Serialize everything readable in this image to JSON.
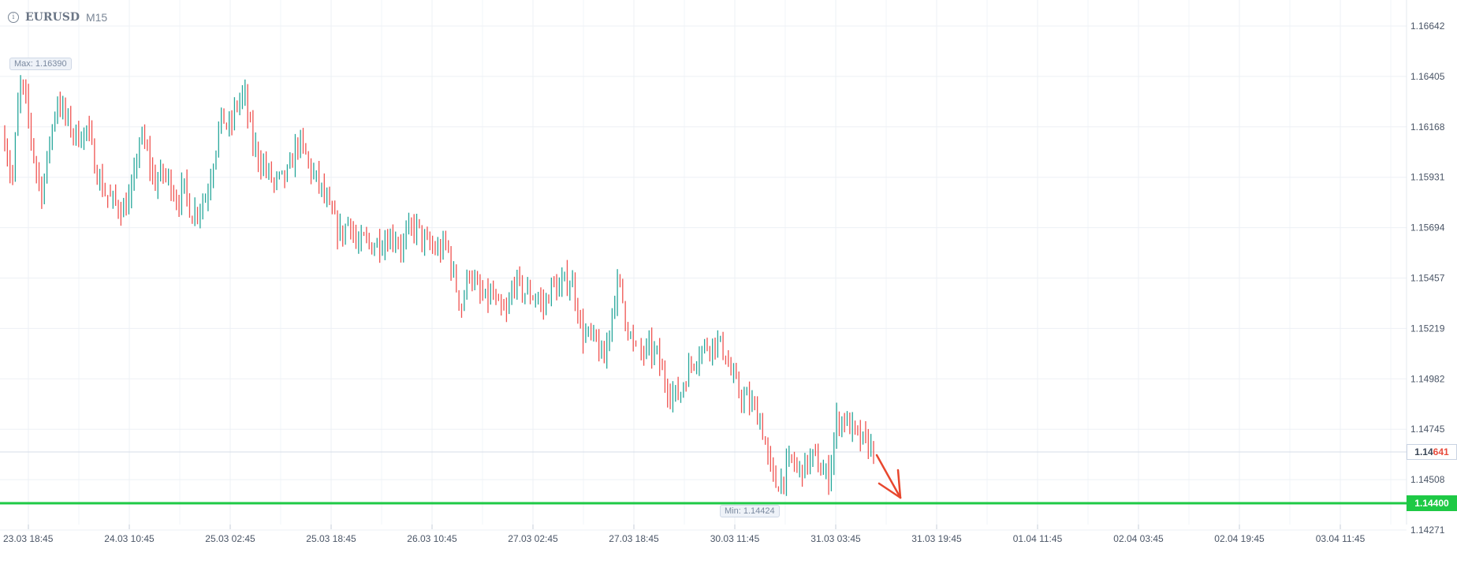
{
  "header": {
    "info_icon": "i",
    "symbol": "EURUSD",
    "timeframe": "M15"
  },
  "chart_data": {
    "type": "candlestick",
    "symbol": "EURUSD",
    "timeframe": "M15",
    "y_ticks": [
      "1.16642",
      "1.16405",
      "1.16168",
      "1.15931",
      "1.15694",
      "1.15457",
      "1.15219",
      "1.14982",
      "1.14745",
      "1.14508",
      "1.14271"
    ],
    "ylim": [
      1.1408,
      1.1686
    ],
    "x_ticks": [
      "23.03 18:45",
      "24.03 10:45",
      "25.03 02:45",
      "25.03 18:45",
      "26.03 10:45",
      "27.03 02:45",
      "27.03 18:45",
      "30.03 11:45",
      "31.03 03:45",
      "31.03 19:45",
      "01.04 11:45",
      "02.04 03:45",
      "02.04 19:45",
      "03.04 11:45"
    ],
    "max_label": "Max: 1.16390",
    "min_label": "Min: 1.14424",
    "max_value": 1.1639,
    "min_value": 1.14424,
    "current_price": 1.14641,
    "current_price_prefix": "1.14",
    "current_price_suffix": "641",
    "support_level": 1.144,
    "support_level_label": "1.14400",
    "forecast_arrow": "down",
    "up_color": "#26a69a",
    "down_color": "#ef5350",
    "level_color": "#1ec945",
    "arrow_color": "#e8472e",
    "grid": true,
    "price_path": [
      [
        0,
        1.1612
      ],
      [
        1,
        1.159
      ],
      [
        2,
        1.1638
      ],
      [
        3,
        1.1625
      ],
      [
        4,
        1.16
      ],
      [
        5,
        1.1585
      ],
      [
        6,
        1.161
      ],
      [
        7,
        1.163
      ],
      [
        8,
        1.1622
      ],
      [
        9,
        1.1615
      ],
      [
        10,
        1.1612
      ],
      [
        11,
        1.1616
      ],
      [
        12,
        1.16
      ],
      [
        13,
        1.1588
      ],
      [
        14,
        1.1583
      ],
      [
        15,
        1.158
      ],
      [
        16,
        1.1578
      ],
      [
        17,
        1.1586
      ],
      [
        18,
        1.1612
      ],
      [
        19,
        1.1605
      ],
      [
        20,
        1.159
      ],
      [
        21,
        1.1595
      ],
      [
        22,
        1.1592
      ],
      [
        23,
        1.1582
      ],
      [
        24,
        1.1588
      ],
      [
        25,
        1.1575
      ],
      [
        26,
        1.158
      ],
      [
        27,
        1.1585
      ],
      [
        28,
        1.1605
      ],
      [
        29,
        1.1622
      ],
      [
        30,
        1.1615
      ],
      [
        31,
        1.1628
      ],
      [
        32,
        1.1632
      ],
      [
        33,
        1.161
      ],
      [
        34,
        1.1602
      ],
      [
        35,
        1.1596
      ],
      [
        36,
        1.159
      ],
      [
        37,
        1.1592
      ],
      [
        38,
        1.1595
      ],
      [
        39,
        1.161
      ],
      [
        40,
        1.1605
      ],
      [
        41,
        1.1595
      ],
      [
        42,
        1.159
      ],
      [
        43,
        1.158
      ],
      [
        44,
        1.1572
      ],
      [
        45,
        1.1565
      ],
      [
        46,
        1.1575
      ],
      [
        47,
        1.156
      ],
      [
        48,
        1.1563
      ],
      [
        49,
        1.1561
      ],
      [
        50,
        1.1563
      ],
      [
        51,
        1.1564
      ],
      [
        52,
        1.1566
      ],
      [
        53,
        1.156
      ],
      [
        54,
        1.1568
      ],
      [
        55,
        1.157
      ],
      [
        56,
        1.1562
      ],
      [
        57,
        1.156
      ],
      [
        58,
        1.1558
      ],
      [
        59,
        1.1562
      ],
      [
        60,
        1.1545
      ],
      [
        61,
        1.1532
      ],
      [
        62,
        1.155
      ],
      [
        63,
        1.154
      ],
      [
        64,
        1.1535
      ],
      [
        65,
        1.1538
      ],
      [
        66,
        1.153
      ],
      [
        67,
        1.1528
      ],
      [
        68,
        1.1545
      ],
      [
        69,
        1.154
      ],
      [
        70,
        1.1538
      ],
      [
        71,
        1.1537
      ],
      [
        72,
        1.1532
      ],
      [
        73,
        1.1542
      ],
      [
        74,
        1.154
      ],
      [
        75,
        1.1545
      ],
      [
        76,
        1.1542
      ],
      [
        77,
        1.152
      ],
      [
        78,
        1.1518
      ],
      [
        79,
        1.1515
      ],
      [
        80,
        1.1505
      ],
      [
        81,
        1.153
      ],
      [
        82,
        1.1545
      ],
      [
        83,
        1.1525
      ],
      [
        84,
        1.1512
      ],
      [
        85,
        1.151
      ],
      [
        86,
        1.1512
      ],
      [
        87,
        1.151
      ],
      [
        88,
        1.1498
      ],
      [
        89,
        1.1492
      ],
      [
        90,
        1.149
      ],
      [
        91,
        1.15
      ],
      [
        92,
        1.1508
      ],
      [
        93,
        1.1512
      ],
      [
        94,
        1.1515
      ],
      [
        95,
        1.1516
      ],
      [
        96,
        1.1512
      ],
      [
        97,
        1.15
      ],
      [
        98,
        1.1492
      ],
      [
        99,
        1.1488
      ],
      [
        100,
        1.1485
      ],
      [
        101,
        1.1478
      ],
      [
        102,
        1.1458
      ],
      [
        103,
        1.1448
      ],
      [
        104,
        1.1453
      ],
      [
        105,
        1.146
      ],
      [
        106,
        1.1455
      ],
      [
        107,
        1.1458
      ],
      [
        108,
        1.1462
      ],
      [
        109,
        1.1455
      ],
      [
        110,
        1.1452
      ],
      [
        111,
        1.1478
      ],
      [
        112,
        1.148
      ],
      [
        113,
        1.1475
      ],
      [
        114,
        1.147
      ],
      [
        115,
        1.1468
      ],
      [
        116,
        1.1465
      ]
    ]
  }
}
